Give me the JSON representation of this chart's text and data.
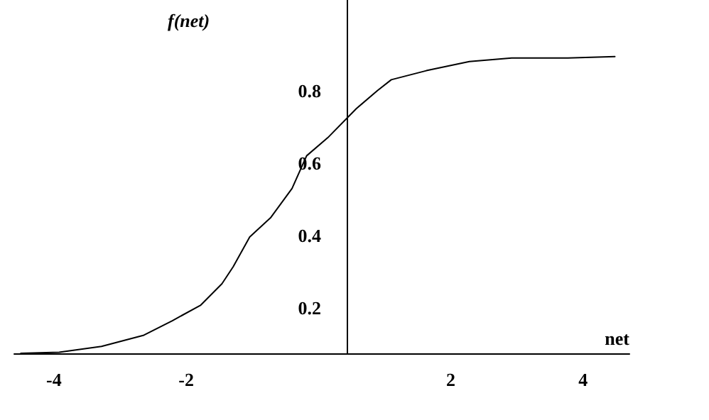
{
  "chart_data": {
    "type": "line",
    "xlabel": "net",
    "ylabel": "f(net)",
    "x": [
      -4.5,
      -3.92,
      -3.28,
      -2.64,
      -2.21,
      -1.78,
      -1.46,
      -1.29,
      -1.04,
      -0.72,
      -0.4,
      -0.18,
      0.14,
      0.57,
      0.89,
      1.1,
      1.63,
      2.28,
      2.92,
      3.77,
      4.48
    ],
    "series": [
      {
        "color": "#000000",
        "values": [
          0.075,
          0.078,
          0.094,
          0.125,
          0.165,
          0.208,
          0.267,
          0.314,
          0.396,
          0.45,
          0.53,
          0.62,
          0.67,
          0.75,
          0.8,
          0.83,
          0.855,
          0.88,
          0.89,
          0.89,
          0.894
        ]
      }
    ],
    "xlim": [
      -4.6,
      4.7
    ],
    "xticks": [
      -4,
      -2,
      2,
      4
    ],
    "ylim": [
      0.075,
      1.05
    ],
    "yticks": [
      0.2,
      0.4,
      0.6,
      0.8
    ],
    "grid": false,
    "marker": "none",
    "line_style": "solid"
  }
}
